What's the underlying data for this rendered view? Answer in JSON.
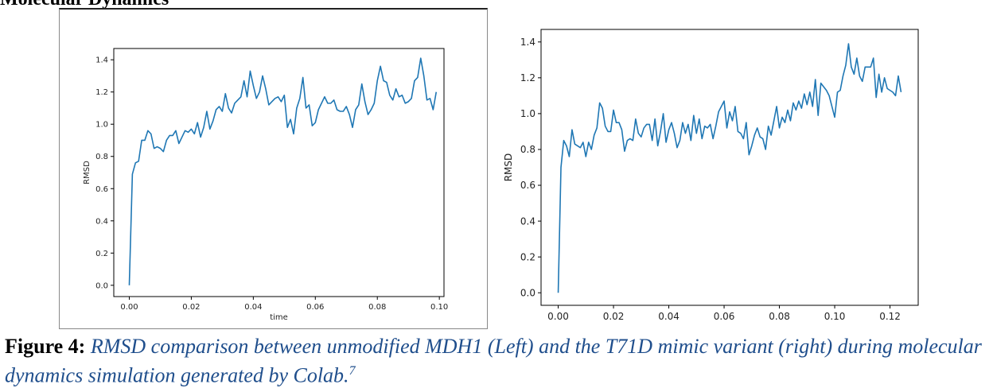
{
  "section_title": "Molecular Dynamics",
  "caption": {
    "label": "Figure 4:",
    "text": "RMSD comparison between unmodified MDH1 (Left) and the T71D mimic variant (right) during molecular dynamics simulation generated by Colab.",
    "superscript": "7"
  },
  "colors": {
    "line": "#1f77b4",
    "axis": "#000000"
  },
  "chart_data": [
    {
      "type": "line",
      "xlabel": "time",
      "ylabel": "RMSD",
      "xlim": [
        -0.005,
        0.1015
      ],
      "ylim": [
        -0.07,
        1.47
      ],
      "xticks": [
        0.0,
        0.02,
        0.04,
        0.06,
        0.08,
        0.1
      ],
      "xtick_labels": [
        "0.00",
        "0.02",
        "0.04",
        "0.06",
        "0.08",
        "0.10"
      ],
      "yticks": [
        0.0,
        0.2,
        0.4,
        0.6,
        0.8,
        1.0,
        1.2,
        1.4
      ],
      "ytick_labels": [
        "0.0",
        "0.2",
        "0.4",
        "0.6",
        "0.8",
        "1.0",
        "1.2",
        "1.4"
      ],
      "grid": false,
      "series": [
        {
          "x": [
            0.0,
            0.001,
            0.002,
            0.003,
            0.004,
            0.005,
            0.006,
            0.007,
            0.008,
            0.009,
            0.01,
            0.011,
            0.012,
            0.013,
            0.014,
            0.015,
            0.016,
            0.017,
            0.018,
            0.019,
            0.02,
            0.021,
            0.022,
            0.023,
            0.024,
            0.025,
            0.026,
            0.027,
            0.028,
            0.029,
            0.03,
            0.031,
            0.032,
            0.033,
            0.034,
            0.035,
            0.036,
            0.037,
            0.038,
            0.039,
            0.04,
            0.041,
            0.042,
            0.043,
            0.044,
            0.045,
            0.046,
            0.047,
            0.048,
            0.049,
            0.05,
            0.051,
            0.052,
            0.053,
            0.054,
            0.055,
            0.056,
            0.057,
            0.058,
            0.059,
            0.06,
            0.061,
            0.062,
            0.063,
            0.064,
            0.065,
            0.066,
            0.067,
            0.068,
            0.069,
            0.07,
            0.071,
            0.072,
            0.073,
            0.074,
            0.075,
            0.076,
            0.077,
            0.078,
            0.079,
            0.08,
            0.081,
            0.082,
            0.083,
            0.084,
            0.085,
            0.086,
            0.087,
            0.088,
            0.089,
            0.09,
            0.091,
            0.092,
            0.093,
            0.094,
            0.095,
            0.096,
            0.097,
            0.098,
            0.099
          ],
          "y": [
            0.0,
            0.69,
            0.76,
            0.77,
            0.9,
            0.9,
            0.96,
            0.94,
            0.85,
            0.86,
            0.85,
            0.83,
            0.9,
            0.93,
            0.93,
            0.96,
            0.88,
            0.92,
            0.96,
            0.95,
            0.97,
            0.94,
            1.01,
            0.92,
            0.98,
            1.08,
            0.97,
            1.02,
            1.09,
            1.11,
            1.08,
            1.19,
            1.1,
            1.07,
            1.13,
            1.15,
            1.17,
            1.27,
            1.17,
            1.33,
            1.24,
            1.16,
            1.2,
            1.3,
            1.22,
            1.12,
            1.14,
            1.16,
            1.17,
            1.14,
            1.18,
            0.98,
            1.03,
            0.94,
            1.1,
            1.16,
            1.29,
            1.1,
            1.12,
            0.99,
            1.01,
            1.09,
            1.13,
            1.17,
            1.13,
            1.13,
            1.15,
            1.09,
            1.08,
            1.08,
            1.11,
            1.06,
            0.98,
            1.09,
            1.12,
            1.25,
            1.14,
            1.06,
            1.09,
            1.13,
            1.27,
            1.36,
            1.27,
            1.26,
            1.18,
            1.15,
            1.22,
            1.17,
            1.18,
            1.13,
            1.14,
            1.16,
            1.27,
            1.29,
            1.41,
            1.3,
            1.15,
            1.16,
            1.09,
            1.2
          ]
        }
      ]
    },
    {
      "type": "line",
      "xlabel": "",
      "ylabel": "RMSD",
      "xlim": [
        -0.0062,
        0.1302
      ],
      "ylim": [
        -0.07,
        1.47
      ],
      "xticks": [
        0.0,
        0.02,
        0.04,
        0.06,
        0.08,
        0.1,
        0.12
      ],
      "xtick_labels": [
        "0.00",
        "0.02",
        "0.04",
        "0.06",
        "0.08",
        "0.10",
        "0.12"
      ],
      "yticks": [
        0.0,
        0.2,
        0.4,
        0.6,
        0.8,
        1.0,
        1.2,
        1.4
      ],
      "ytick_labels": [
        "0.0",
        "0.2",
        "0.4",
        "0.6",
        "0.8",
        "1.0",
        "1.2",
        "1.4"
      ],
      "grid": false,
      "series": [
        {
          "x": [
            0.0,
            0.001,
            0.002,
            0.003,
            0.004,
            0.005,
            0.006,
            0.007,
            0.008,
            0.009,
            0.01,
            0.011,
            0.012,
            0.013,
            0.014,
            0.015,
            0.016,
            0.017,
            0.018,
            0.019,
            0.02,
            0.021,
            0.022,
            0.023,
            0.024,
            0.025,
            0.026,
            0.027,
            0.028,
            0.029,
            0.03,
            0.031,
            0.032,
            0.033,
            0.034,
            0.035,
            0.036,
            0.037,
            0.038,
            0.039,
            0.04,
            0.041,
            0.042,
            0.043,
            0.044,
            0.045,
            0.046,
            0.047,
            0.048,
            0.049,
            0.05,
            0.051,
            0.052,
            0.053,
            0.054,
            0.055,
            0.056,
            0.057,
            0.058,
            0.059,
            0.06,
            0.061,
            0.062,
            0.063,
            0.064,
            0.065,
            0.066,
            0.067,
            0.068,
            0.069,
            0.07,
            0.071,
            0.072,
            0.073,
            0.074,
            0.075,
            0.076,
            0.077,
            0.078,
            0.079,
            0.08,
            0.081,
            0.082,
            0.083,
            0.084,
            0.085,
            0.086,
            0.087,
            0.088,
            0.089,
            0.09,
            0.091,
            0.092,
            0.093,
            0.094,
            0.095,
            0.096,
            0.097,
            0.098,
            0.099,
            0.1,
            0.101,
            0.102,
            0.103,
            0.104,
            0.105,
            0.106,
            0.107,
            0.108,
            0.109,
            0.11,
            0.111,
            0.112,
            0.113,
            0.114,
            0.115,
            0.116,
            0.117,
            0.118,
            0.119,
            0.12,
            0.121,
            0.122,
            0.123,
            0.124
          ],
          "y": [
            0.0,
            0.7,
            0.85,
            0.82,
            0.76,
            0.91,
            0.83,
            0.82,
            0.81,
            0.84,
            0.76,
            0.84,
            0.8,
            0.88,
            0.92,
            1.06,
            1.03,
            0.93,
            0.9,
            0.9,
            1.02,
            0.95,
            0.95,
            0.91,
            0.79,
            0.85,
            0.86,
            0.85,
            0.97,
            0.89,
            0.87,
            0.92,
            0.94,
            0.94,
            0.85,
            0.97,
            0.82,
            0.9,
            1.0,
            0.84,
            0.91,
            0.95,
            0.89,
            0.81,
            0.85,
            0.95,
            0.89,
            0.94,
            0.85,
            0.99,
            0.89,
            0.97,
            0.86,
            0.93,
            0.92,
            0.94,
            0.86,
            0.93,
            1.01,
            1.04,
            1.07,
            0.92,
            1.01,
            0.96,
            1.04,
            0.9,
            0.89,
            0.86,
            0.95,
            0.77,
            0.82,
            0.88,
            0.92,
            0.87,
            0.86,
            0.8,
            0.93,
            0.88,
            0.96,
            1.04,
            0.92,
            0.98,
            0.95,
            1.02,
            0.96,
            1.06,
            1.02,
            1.07,
            1.03,
            1.11,
            1.05,
            1.12,
            1.04,
            1.19,
            0.99,
            1.17,
            1.15,
            1.13,
            1.1,
            1.04,
            0.98,
            1.12,
            1.13,
            1.21,
            1.27,
            1.39,
            1.26,
            1.22,
            1.31,
            1.21,
            1.18,
            1.26,
            1.26,
            1.26,
            1.31,
            1.09,
            1.22,
            1.12,
            1.2,
            1.14,
            1.13,
            1.12,
            1.1,
            1.21,
            1.12
          ]
        }
      ]
    }
  ]
}
